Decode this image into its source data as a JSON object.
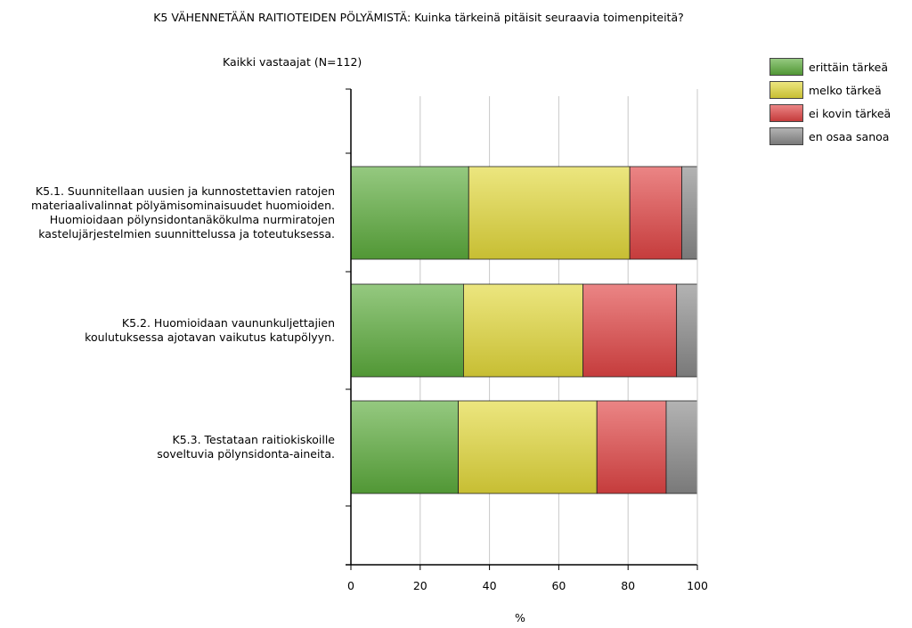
{
  "chart_data": {
    "type": "bar",
    "orientation": "horizontal",
    "stacked": true,
    "title": "K5 VÄHENNETÄÄN RAITIOTEIDEN PÖLYÄMISTÄ: Kuinka tärkeinä pitäisit seuraavia toimenpiteitä?",
    "subtitle": "Kaikki vastaajat (N=112)",
    "categories": [
      [
        "K5.1. Suunnitellaan uusien ja kunnostettavien ratojen",
        "materiaalivalinnat pölyämisominaisuudet huomioiden.",
        "Huomioidaan pölynsidontanäkökulma nurmiratojen",
        "kastelujärjestelmien suunnittelussa ja toteutuksessa."
      ],
      [
        "K5.2. Huomioidaan vaununkuljettajien",
        "koulutuksessa ajotavan vaikutus katupölyyn."
      ],
      [
        "K5.3. Testataan raitiokiskoille",
        "soveltuvia pölynsidonta-aineita."
      ]
    ],
    "series": [
      {
        "name": "erittäin tärkeä",
        "color": "#5cac3c",
        "values": [
          34,
          32.5,
          31
        ]
      },
      {
        "name": "melko tärkeä",
        "color": "#e2d83a",
        "values": [
          46.5,
          34.5,
          40
        ]
      },
      {
        "name": "ei kovin tärkeä",
        "color": "#e04444",
        "values": [
          15,
          27,
          20
        ]
      },
      {
        "name": "en osaa sanoa",
        "color": "#8a8a8a",
        "values": [
          4.5,
          6,
          9
        ]
      }
    ],
    "xlabel": "%",
    "ylabel": "",
    "xlim": [
      0,
      100
    ],
    "xticks": [
      "0",
      "20",
      "40",
      "60",
      "80",
      "100"
    ],
    "grid": true,
    "legend_position": "top-right"
  }
}
